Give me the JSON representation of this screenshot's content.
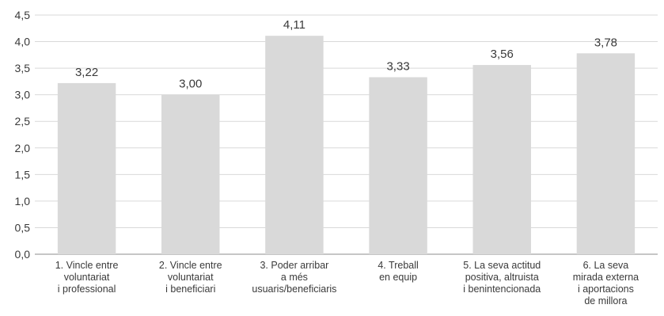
{
  "chart_data": {
    "type": "bar",
    "title": "",
    "xlabel": "",
    "ylabel": "",
    "ylim": [
      0,
      4.5
    ],
    "ytick_step": 0.5,
    "ytick_labels": [
      "0,0",
      "0,5",
      "1,0",
      "1,5",
      "2,0",
      "2,5",
      "3,0",
      "3,5",
      "4,0",
      "4,5"
    ],
    "grid": true,
    "legend": "none",
    "bar_color": "#d9d9d9",
    "grid_color": "#d9d9d9",
    "categories": [
      [
        "1. Vincle entre",
        "voluntariat",
        "i professional"
      ],
      [
        "2. Vincle entre",
        "voluntariat",
        "i beneficiari"
      ],
      [
        "3. Poder arribar",
        "a més",
        "usuaris/beneficiaris"
      ],
      [
        "4. Treball",
        "en equip"
      ],
      [
        "5. La seva actitud",
        "positiva, altruista",
        "i benintencionada"
      ],
      [
        "6. La seva",
        "mirada externa",
        "i aportacions",
        "de millora"
      ]
    ],
    "values": [
      3.22,
      3.0,
      4.11,
      3.33,
      3.56,
      3.78
    ],
    "value_labels": [
      "3,22",
      "3,00",
      "4,11",
      "3,33",
      "3,56",
      "3,78"
    ]
  }
}
